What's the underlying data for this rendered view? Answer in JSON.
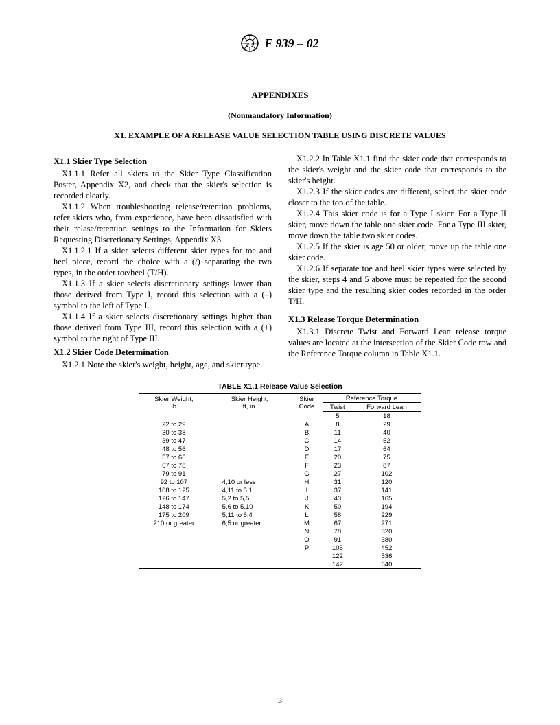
{
  "header": {
    "doc_number": "F 939 – 02"
  },
  "titles": {
    "appendixes": "APPENDIXES",
    "nonmandatory": "(Nonmandatory Information)",
    "x1": "X1.   EXAMPLE OF A RELEASE VALUE SELECTION TABLE USING DISCRETE VALUES"
  },
  "left_column": {
    "h1": "X1.1  Skier Type Selection",
    "p1": "X1.1.1 Refer all skiers to the Skier Type Classification Poster, Appendix X2, and check that the skier's selection is recorded clearly.",
    "p2": "X1.1.2 When troubleshooting release/retention problems, refer skiers who, from experience, have been dissatisfied with their relase/retention settings to the Information for Skiers Requesting Discretionary Settings, Appendix X3.",
    "p3": "X1.1.2.1 If a skier selects different skier types for toe and heel piece, record the choice with a (/) separating the two types, in the order toe/heel (T/H).",
    "p4": "X1.1.3 If a skier selects discretionary settings lower than those derived from Type I, record this selection with a (–) symbol to the left of Type I.",
    "p5": "X1.1.4 If a skier selects discretionary settings higher than those derived from Type III, record this selection with a (+) symbol to the right of Type III.",
    "h2": "X1.2  Skier Code Determination",
    "p6": "X1.2.1 Note the skier's weight, height, age, and skier type."
  },
  "right_column": {
    "p1": "X1.2.2 In Table X1.1 find the skier code that corresponds to the skier's weight and the skier code that corresponds to the skier's height.",
    "p2": "X1.2.3 If the skier codes are different, select the skier code closer to the top of the table.",
    "p3": "X1.2.4 This skier code is for a Type I skier. For a Type II skier, move down the table one skier code. For a Type III skier, move down the table two skier codes.",
    "p4": "X1.2.5 If the skier is age 50 or older, move up the table one skier code.",
    "p5": "X1.2.6 If separate toe and heel skier types were selected by the skier, steps 4 and 5 above must be repeated for the second skier type and the resulting skier codes recorded in the order T/H.",
    "h1": "X1.3  Release Torque Determination",
    "p6": "X1.3.1 Discrete Twist and Forward Lean release torque values are located at the intersection of the Skier Code row and the Reference Torque column in Table X1.1."
  },
  "table": {
    "title": "TABLE X1.1  Release Value Selection",
    "headers": {
      "weight_l1": "Skier Weight,",
      "weight_l2": "lb",
      "height_l1": "Skier Height,",
      "height_l2": "ft, in.",
      "code_l1": "Skier",
      "code_l2": "Code",
      "ref": "Reference Torque",
      "twist": "Twist",
      "lean": "Forward Lean"
    },
    "rows": [
      {
        "w": "",
        "h": "",
        "c": "",
        "t": "5",
        "l": "18"
      },
      {
        "w": "22 to 29",
        "h": "",
        "c": "A",
        "t": "8",
        "l": "29"
      },
      {
        "w": "30 to 38",
        "h": "",
        "c": "B",
        "t": "11",
        "l": "40"
      },
      {
        "w": "39 to 47",
        "h": "",
        "c": "C",
        "t": "14",
        "l": "52"
      },
      {
        "w": "48 to 56",
        "h": "",
        "c": "D",
        "t": "17",
        "l": "64"
      },
      {
        "w": "57 to 66",
        "h": "",
        "c": "E",
        "t": "20",
        "l": "75"
      },
      {
        "w": "67 to 78",
        "h": "",
        "c": "F",
        "t": "23",
        "l": "87"
      },
      {
        "w": "79 to 91",
        "h": "",
        "c": "G",
        "t": "27",
        "l": "102"
      },
      {
        "w": "92 to 107",
        "h": "4,10 or less",
        "c": "H",
        "t": "31",
        "l": "120"
      },
      {
        "w": "108 to 125",
        "h": "4,11 to 5,1",
        "c": "I",
        "t": "37",
        "l": "141"
      },
      {
        "w": "126 to 147",
        "h": "5,2 to 5,5",
        "c": "J",
        "t": "43",
        "l": "165"
      },
      {
        "w": "148 to 174",
        "h": "5,6 to 5,10",
        "c": "K",
        "t": "50",
        "l": "194"
      },
      {
        "w": "175 to 209",
        "h": "5,11 to 6,4",
        "c": "L",
        "t": "58",
        "l": "229"
      },
      {
        "w": "210 or greater",
        "h": "6,5 or greater",
        "c": "M",
        "t": "67",
        "l": "271"
      },
      {
        "w": "",
        "h": "",
        "c": "N",
        "t": "78",
        "l": "320"
      },
      {
        "w": "",
        "h": "",
        "c": "O",
        "t": "91",
        "l": "380"
      },
      {
        "w": "",
        "h": "",
        "c": "P",
        "t": "105",
        "l": "452"
      },
      {
        "w": "",
        "h": "",
        "c": "",
        "t": "122",
        "l": "536"
      },
      {
        "w": "",
        "h": "",
        "c": "",
        "t": "142",
        "l": "640"
      }
    ]
  },
  "page_number": "3"
}
